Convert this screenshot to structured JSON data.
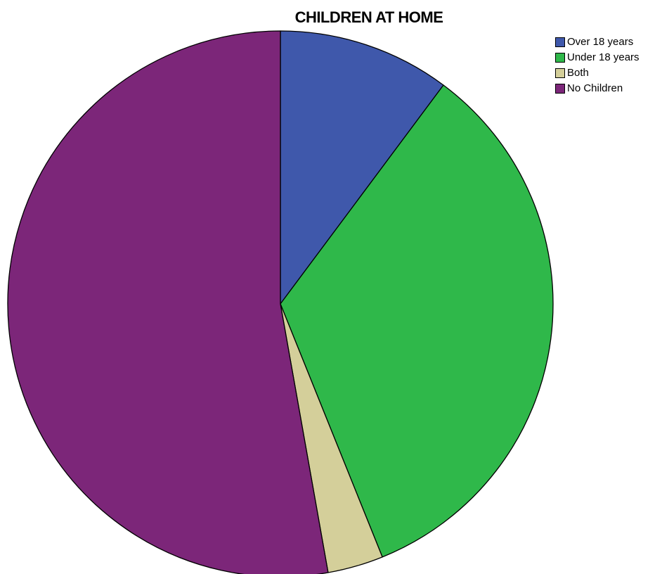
{
  "chart_data": {
    "type": "pie",
    "title": "CHILDREN AT HOME",
    "categories": [
      "Over 18 years",
      "Under 18 years",
      "Both",
      "No Children"
    ],
    "values": [
      10.2,
      33.7,
      3.3,
      52.8
    ],
    "unit": "percent",
    "colors": [
      "#3F58AB",
      "#2FB84A",
      "#D4CF9A",
      "#7C2679"
    ],
    "start_angle": "12 o'clock",
    "direction": "clockwise",
    "legend_position": "top-right"
  }
}
